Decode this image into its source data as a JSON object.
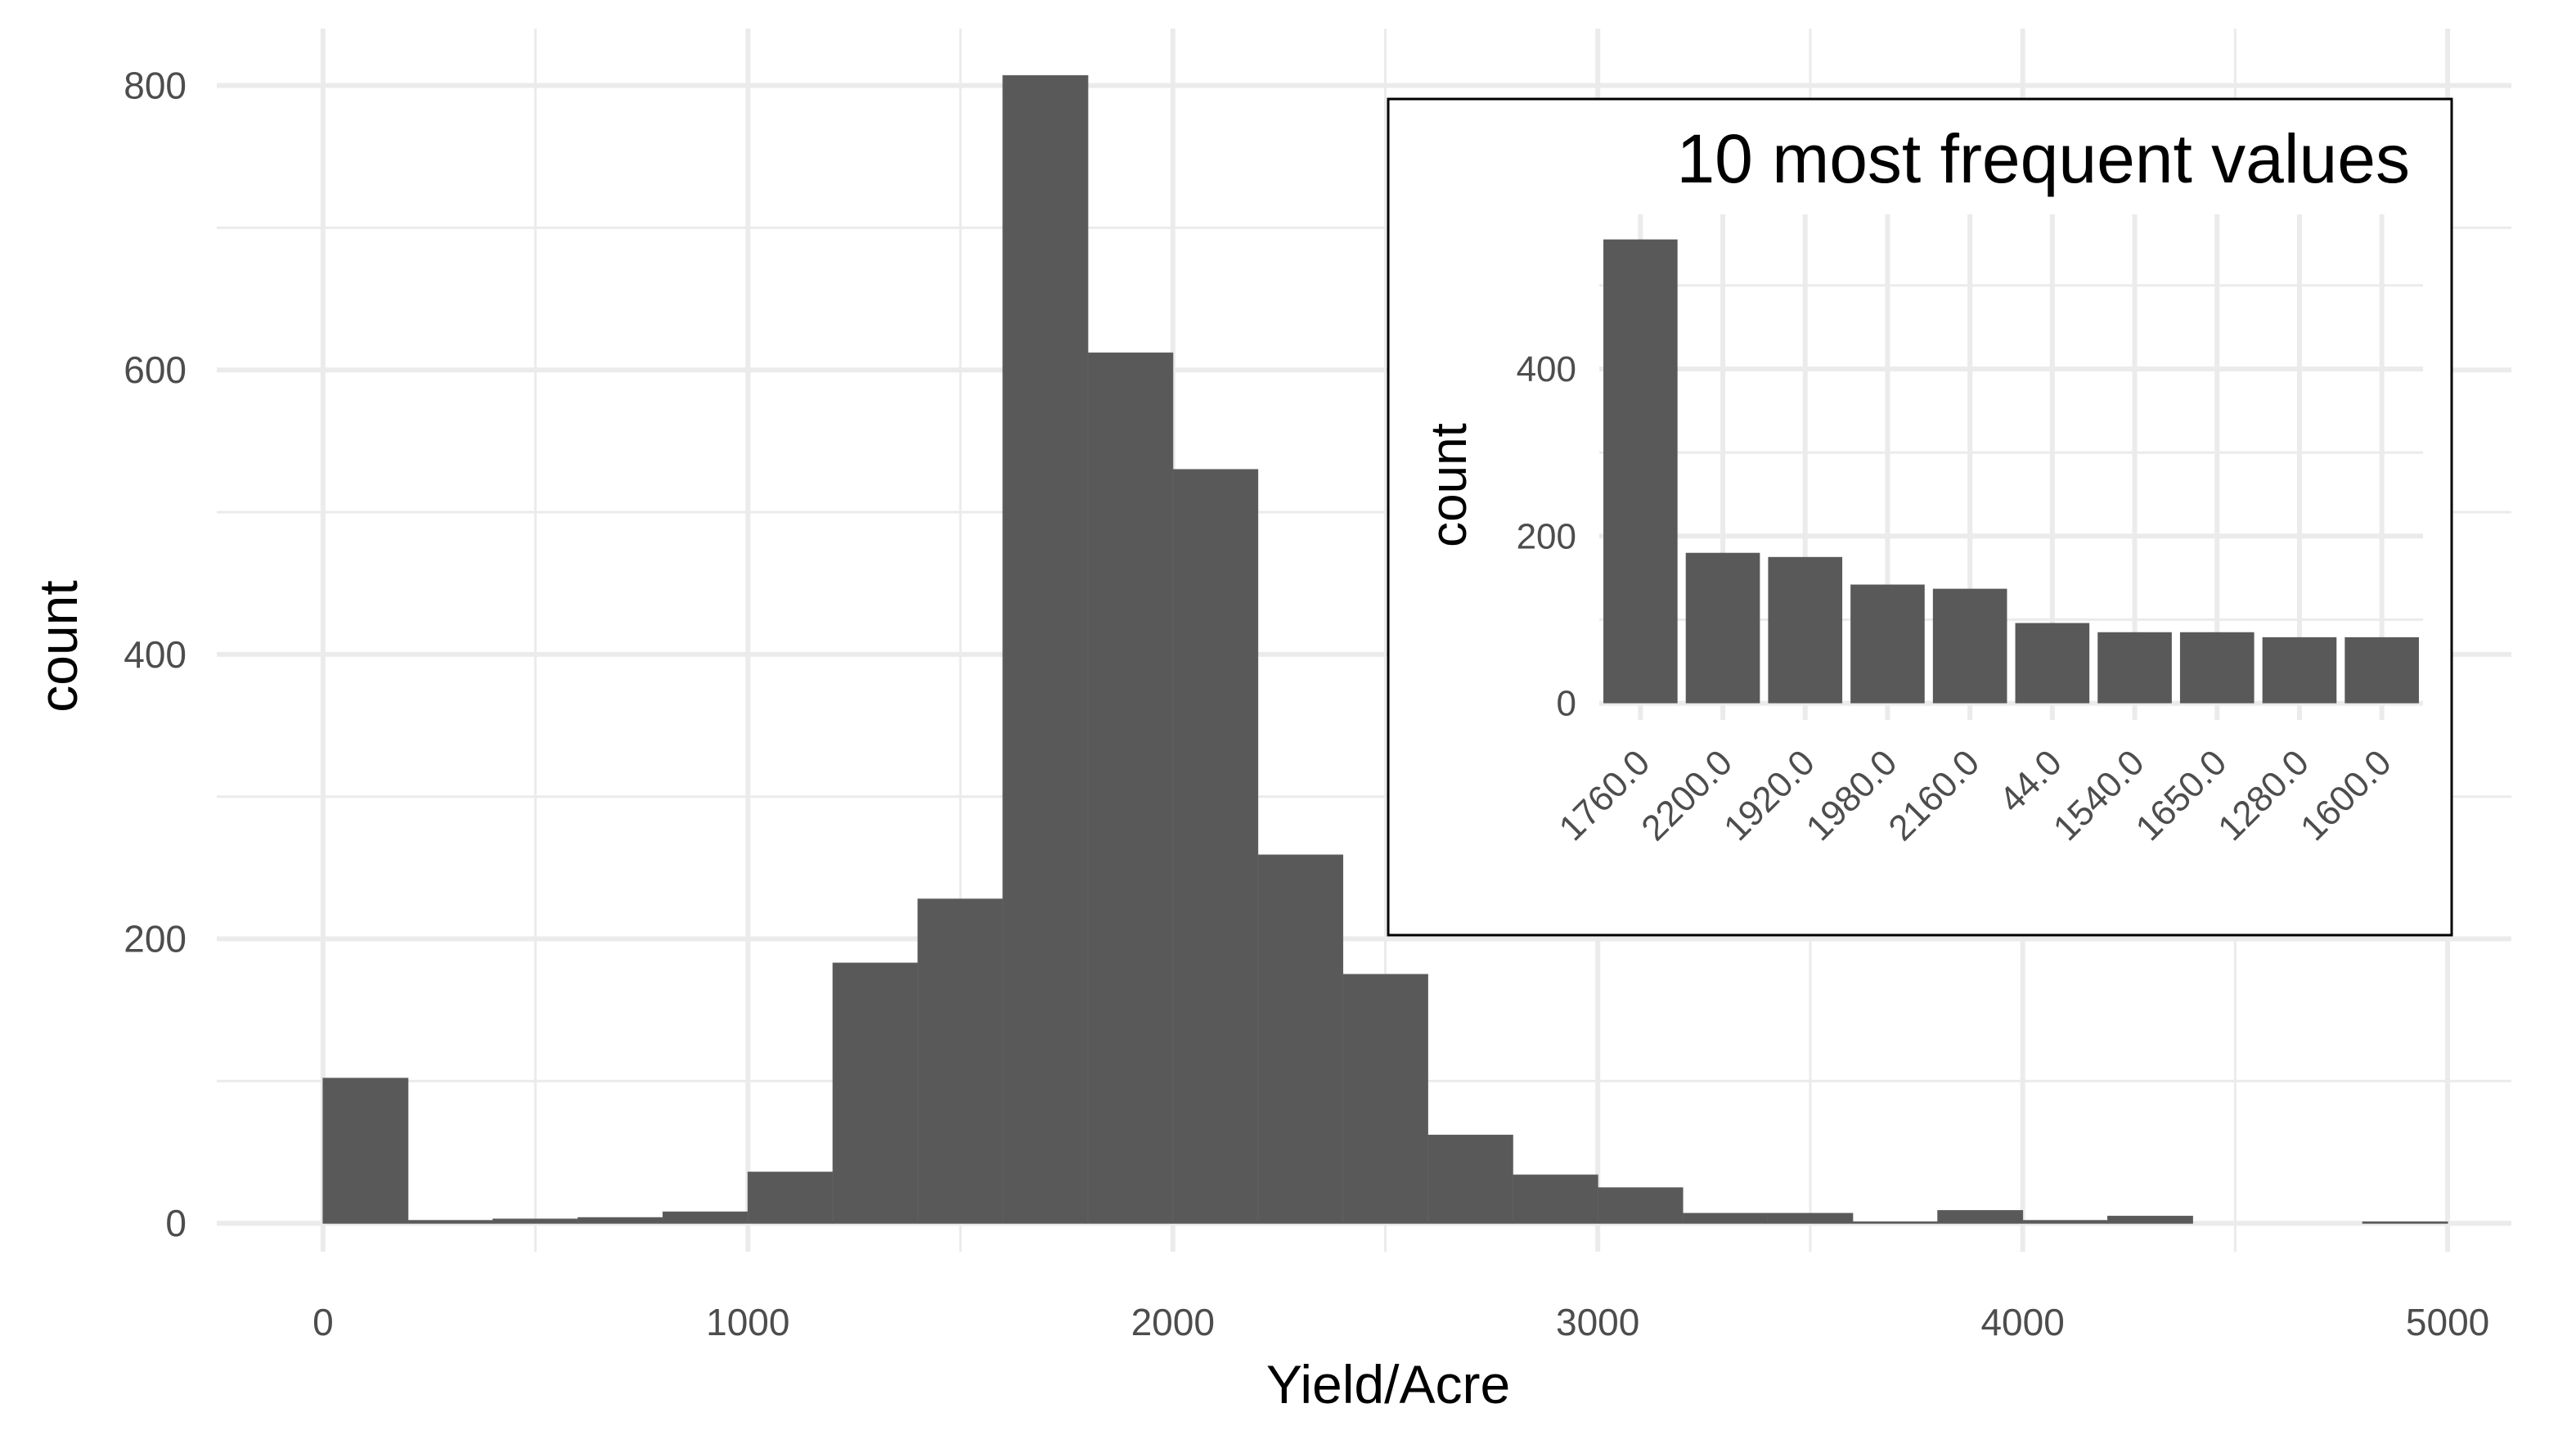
{
  "colors": {
    "bar": "#595959",
    "grid_major": "#ebebeb",
    "grid_minor": "#f3f3f3",
    "background": "#ffffff",
    "inset_border": "#000000"
  },
  "chart_data": [
    {
      "type": "bar",
      "subtype": "histogram",
      "xlabel": "Yield/Acre",
      "ylabel": "count",
      "xlim": [
        -250,
        5150
      ],
      "ylim": [
        -20,
        840
      ],
      "x_ticks": [
        0,
        1000,
        2000,
        3000,
        4000,
        5000
      ],
      "y_ticks": [
        0,
        200,
        400,
        600,
        800
      ],
      "grid": true,
      "bin_width": 200,
      "bins": [
        {
          "x0": 0,
          "x1": 200,
          "count": 102
        },
        {
          "x0": 200,
          "x1": 400,
          "count": 2
        },
        {
          "x0": 400,
          "x1": 600,
          "count": 3
        },
        {
          "x0": 600,
          "x1": 800,
          "count": 4
        },
        {
          "x0": 800,
          "x1": 1000,
          "count": 8
        },
        {
          "x0": 1000,
          "x1": 1200,
          "count": 36
        },
        {
          "x0": 1200,
          "x1": 1400,
          "count": 183
        },
        {
          "x0": 1400,
          "x1": 1600,
          "count": 228
        },
        {
          "x0": 1600,
          "x1": 1800,
          "count": 807
        },
        {
          "x0": 1800,
          "x1": 2000,
          "count": 612
        },
        {
          "x0": 2000,
          "x1": 2200,
          "count": 530
        },
        {
          "x0": 2200,
          "x1": 2400,
          "count": 259
        },
        {
          "x0": 2400,
          "x1": 2600,
          "count": 175
        },
        {
          "x0": 2600,
          "x1": 2800,
          "count": 62
        },
        {
          "x0": 2800,
          "x1": 3000,
          "count": 34
        },
        {
          "x0": 3000,
          "x1": 3200,
          "count": 25
        },
        {
          "x0": 3200,
          "x1": 3400,
          "count": 7
        },
        {
          "x0": 3400,
          "x1": 3600,
          "count": 7
        },
        {
          "x0": 3600,
          "x1": 3800,
          "count": 1
        },
        {
          "x0": 3800,
          "x1": 4000,
          "count": 9
        },
        {
          "x0": 4000,
          "x1": 4200,
          "count": 2
        },
        {
          "x0": 4200,
          "x1": 4400,
          "count": 5
        },
        {
          "x0": 4400,
          "x1": 4600,
          "count": 0
        },
        {
          "x0": 4600,
          "x1": 4800,
          "count": 0
        },
        {
          "x0": 4800,
          "x1": 5000,
          "count": 1
        }
      ]
    },
    {
      "type": "bar",
      "title": "10 most frequent values",
      "xlabel": "",
      "ylabel": "count",
      "ylim": [
        -20,
        585
      ],
      "y_ticks": [
        0,
        200,
        400
      ],
      "grid": true,
      "legend": "top-right inset",
      "categories": [
        "1760.0",
        "2200.0",
        "1920.0",
        "1980.0",
        "2160.0",
        "44.0",
        "1540.0",
        "1650.0",
        "1280.0",
        "1600.0"
      ],
      "values": [
        555,
        180,
        175,
        142,
        137,
        96,
        85,
        85,
        79,
        79
      ]
    }
  ]
}
